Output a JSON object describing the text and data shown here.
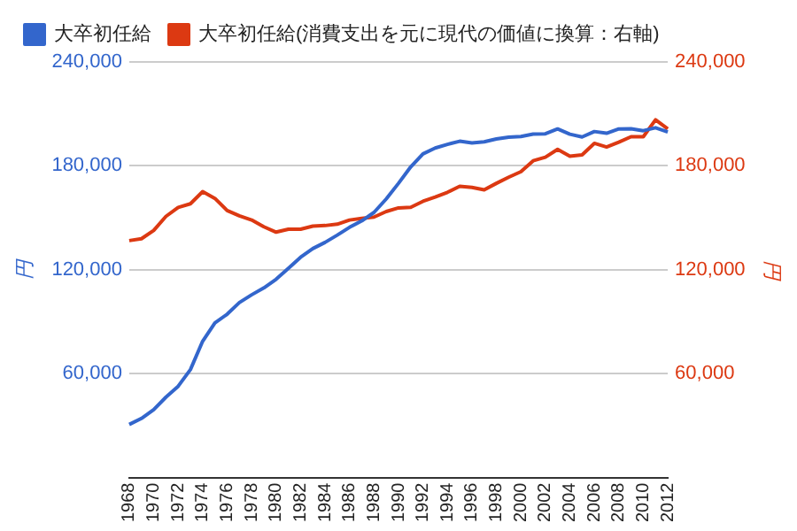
{
  "chart_data": {
    "type": "line",
    "ylabel": "円",
    "y2label": "円",
    "categories": [
      "1968",
      null,
      "1970",
      null,
      "1972",
      null,
      "1974",
      null,
      "1976",
      null,
      "1978",
      null,
      "1980",
      null,
      "1982",
      null,
      "1984",
      null,
      "1986",
      null,
      "1988",
      null,
      "1990",
      null,
      "1992",
      null,
      "1994",
      null,
      "1996",
      null,
      "1998",
      null,
      "2000",
      null,
      "2002",
      null,
      "2004",
      null,
      "2006",
      null,
      "2008",
      null,
      "2010",
      null,
      "2012"
    ],
    "series": [
      {
        "name": "大卒初任給",
        "color": "#3366cc",
        "values": [
          30600,
          34100,
          39200,
          46400,
          52700,
          62300,
          78700,
          89300,
          94300,
          101000,
          105500,
          109500,
          114500,
          120800,
          127200,
          132200,
          135800,
          140000,
          144500,
          148200,
          153100,
          160900,
          169900,
          179400,
          186900,
          190300,
          192400,
          194200,
          193200,
          193900,
          195500,
          196600,
          196900,
          198300,
          198500,
          201300,
          198300,
          196700,
          199800,
          198800,
          201300,
          201400,
          200300,
          202000,
          199600
        ]
      },
      {
        "name": "大卒初任給(消費支出を元に現代の価値に換算：右軸)",
        "color": "#dc3912",
        "axis": "y2",
        "values": [
          136800,
          137900,
          142700,
          150800,
          156000,
          158100,
          165100,
          161200,
          154200,
          151100,
          148700,
          144800,
          141700,
          143400,
          143400,
          145200,
          145500,
          146300,
          148700,
          149700,
          150400,
          153600,
          155700,
          156000,
          159500,
          162000,
          164700,
          168200,
          167500,
          166100,
          169900,
          173400,
          176600,
          182900,
          185000,
          189500,
          185600,
          186300,
          193000,
          190900,
          193700,
          196800,
          196800,
          206600,
          201300
        ]
      }
    ],
    "ylim": [
      0,
      240000
    ],
    "yticks": [
      {
        "value": 60000,
        "label": "60,000"
      },
      {
        "value": 120000,
        "label": "120,000"
      },
      {
        "value": 180000,
        "label": "180,000"
      },
      {
        "value": 240000,
        "label": "240,000"
      }
    ],
    "y2lim": [
      0,
      240000
    ],
    "y2ticks": [
      {
        "value": 60000,
        "label": "60,000"
      },
      {
        "value": 120000,
        "label": "120,000"
      },
      {
        "value": 180000,
        "label": "180,000"
      },
      {
        "value": 240000,
        "label": "240,000"
      }
    ],
    "grid": "y",
    "legend": "top left",
    "marker": "none",
    "line_style": "solid"
  }
}
